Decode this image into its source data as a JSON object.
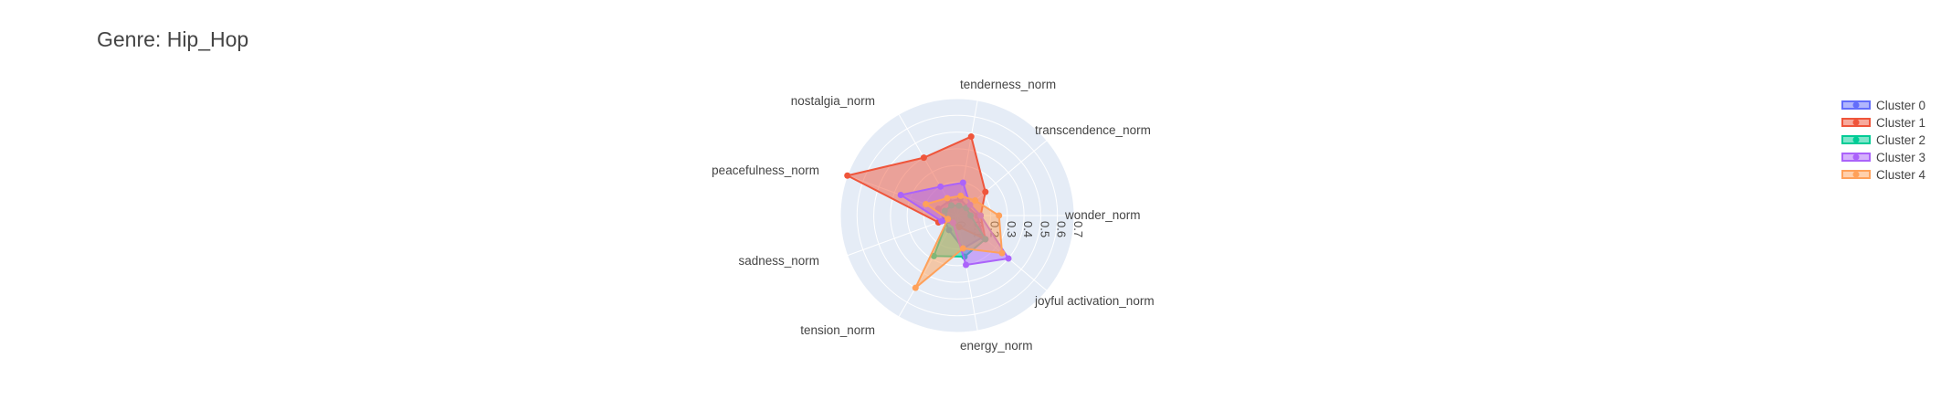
{
  "chart_data": {
    "type": "radar",
    "title": "Genre: Hip_Hop",
    "axes": [
      "wonder_norm",
      "transcendence_norm",
      "tenderness_norm",
      "nostalgia_norm",
      "peacefulness_norm",
      "sadness_norm",
      "tension_norm",
      "energy_norm",
      "joyful activation_norm"
    ],
    "radial_ticks": [
      "0",
      "0.1",
      "0.2",
      "0.3",
      "0.4",
      "0.5",
      "0.6",
      "0.7"
    ],
    "radial_range": [
      0,
      0.7
    ],
    "grid": true,
    "legend_position": "top-right",
    "series": [
      {
        "name": "Cluster 0",
        "color": "#636efa",
        "values": [
          0.12,
          0.08,
          0.1,
          0.1,
          0.12,
          0.08,
          0.1,
          0.2,
          0.2
        ]
      },
      {
        "name": "Cluster 1",
        "color": "#ef553b",
        "values": [
          0.14,
          0.22,
          0.48,
          0.4,
          0.7,
          0.12,
          0.05,
          0.07,
          0.22
        ]
      },
      {
        "name": "Cluster 2",
        "color": "#00cc96",
        "values": [
          0.08,
          0.07,
          0.06,
          0.07,
          0.08,
          0.06,
          0.28,
          0.25,
          0.22
        ]
      },
      {
        "name": "Cluster 3",
        "color": "#ab63fa",
        "values": [
          0.14,
          0.1,
          0.2,
          0.2,
          0.36,
          0.1,
          0.05,
          0.3,
          0.4
        ]
      },
      {
        "name": "Cluster 4",
        "color": "#ffa15a",
        "values": [
          0.25,
          0.14,
          0.12,
          0.12,
          0.2,
          0.06,
          0.5,
          0.2,
          0.35
        ]
      }
    ]
  }
}
